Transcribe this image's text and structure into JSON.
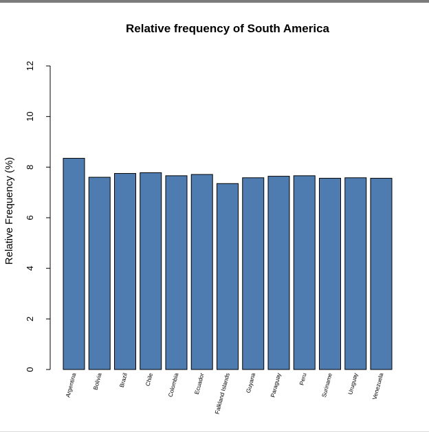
{
  "chart_data": {
    "type": "bar",
    "title": "Relative frequency of South America",
    "xlabel": "",
    "ylabel": "Relative Frequency (%)",
    "ylim": [
      0,
      12
    ],
    "yticks": [
      0,
      2,
      4,
      6,
      8,
      10,
      12
    ],
    "grid": false,
    "bar_color": "#4f7cb0",
    "categories": [
      "Argentina",
      "Bolivia",
      "Brazil",
      "Chile",
      "Colombia",
      "Ecuador",
      "Falkland Islands",
      "Guyana",
      "Paraguay",
      "Peru",
      "Suriname",
      "Uruguay",
      "Venezuela"
    ],
    "values": [
      8.35,
      7.6,
      7.75,
      7.78,
      7.66,
      7.71,
      7.35,
      7.58,
      7.64,
      7.66,
      7.56,
      7.58,
      7.56
    ]
  }
}
